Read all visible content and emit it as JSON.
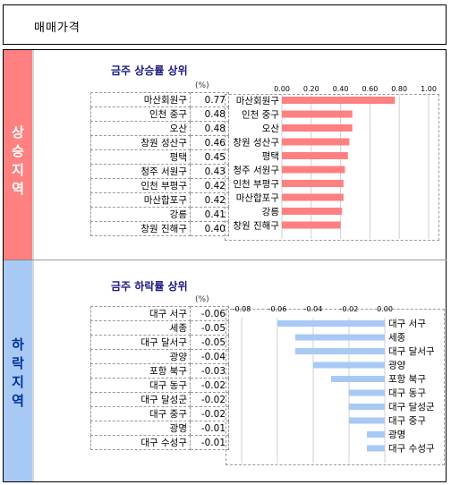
{
  "header": {
    "title": "매매가격"
  },
  "up_section": {
    "side_label": [
      "상",
      "승",
      "지",
      "역"
    ],
    "title": "금주 상승률 상위",
    "unit": "(%)"
  },
  "down_section": {
    "side_label": [
      "하",
      "락",
      "지",
      "역"
    ],
    "title": "금주 하락률 상위",
    "unit": "(%)"
  },
  "colors": {
    "up_bar": "#ff8080",
    "down_bar": "#a9c9f5",
    "up_side": "#ff8080",
    "down_side": "#a9c9f5"
  },
  "chart_data": [
    {
      "type": "bar",
      "orientation": "horizontal",
      "title": "금주 상승률 상위",
      "categories": [
        "마산회원구",
        "인천 중구",
        "오산",
        "창원 성산구",
        "평택",
        "청주 서원구",
        "인천 부평구",
        "마산합포구",
        "강릉",
        "창원 진해구"
      ],
      "values": [
        0.77,
        0.48,
        0.48,
        0.46,
        0.45,
        0.43,
        0.42,
        0.42,
        0.41,
        0.4
      ],
      "value_labels": [
        "0.77",
        "0.48",
        "0.48",
        "0.46",
        "0.45",
        "0.43",
        "0.42",
        "0.42",
        "0.41",
        "0.40"
      ],
      "xlim": [
        0,
        1.0
      ],
      "ticks": [
        "0.00",
        "0.20",
        "0.40",
        "0.60",
        "0.80",
        "1.00"
      ],
      "tick_values": [
        0,
        0.2,
        0.4,
        0.6,
        0.8,
        1.0
      ],
      "grid": true
    },
    {
      "type": "bar",
      "orientation": "horizontal",
      "title": "금주 하락률 상위",
      "categories": [
        "대구 서구",
        "세종",
        "대구 달서구",
        "광양",
        "포항 북구",
        "대구 동구",
        "대구 달성군",
        "대구 중구",
        "광명",
        "대구 수성구"
      ],
      "values": [
        -0.06,
        -0.05,
        -0.05,
        -0.04,
        -0.03,
        -0.02,
        -0.02,
        -0.02,
        -0.01,
        -0.01
      ],
      "value_labels": [
        "-0.06",
        "-0.05",
        "-0.05",
        "-0.04",
        "-0.03",
        "-0.02",
        "-0.02",
        "-0.02",
        "-0.01",
        "-0.01"
      ],
      "xlim": [
        -0.08,
        0.0
      ],
      "ticks": [
        "-0.08",
        "-0.06",
        "-0.04",
        "-0.02",
        "0.00"
      ],
      "tick_values": [
        -0.08,
        -0.06,
        -0.04,
        -0.02,
        0.0
      ],
      "grid": true
    }
  ]
}
